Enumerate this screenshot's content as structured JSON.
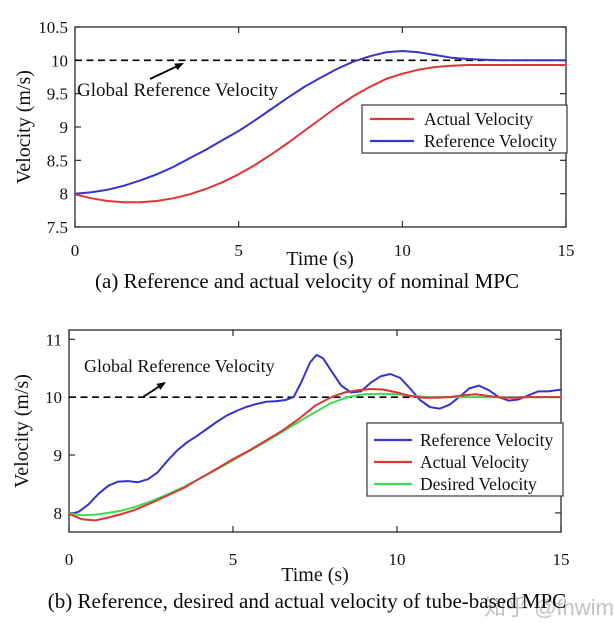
{
  "watermark": "知乎 @fhwim",
  "chart_data": [
    {
      "type": "line",
      "title": "(a) Reference and actual velocity of nominal MPC",
      "xlabel": "Time (s)",
      "ylabel": "Velocity (m/s)",
      "xlim": [
        0,
        15
      ],
      "ylim": [
        7.5,
        10.5
      ],
      "xticks": [
        0,
        5,
        10,
        15
      ],
      "yticks": [
        7.5,
        8,
        8.5,
        9,
        9.5,
        10,
        10.5
      ],
      "grid": false,
      "frame": "box",
      "annotation": {
        "text": "Global Reference Velocity",
        "arrow": true
      },
      "reference_line": {
        "y": 10,
        "style": "dashed",
        "color": "#000000"
      },
      "legend": {
        "position": "middle-right",
        "entries": [
          {
            "label": "Actual Velocity",
            "color": "#e03434"
          },
          {
            "label": "Reference Velocity",
            "color": "#3434cc"
          }
        ]
      },
      "series": [
        {
          "name": "Reference Velocity",
          "color": "#3434cc",
          "points": [
            [
              0,
              8.0
            ],
            [
              0.5,
              8.02
            ],
            [
              1,
              8.06
            ],
            [
              1.5,
              8.12
            ],
            [
              2,
              8.2
            ],
            [
              2.5,
              8.29
            ],
            [
              3,
              8.4
            ],
            [
              3.5,
              8.53
            ],
            [
              4,
              8.66
            ],
            [
              4.5,
              8.8
            ],
            [
              5,
              8.94
            ],
            [
              5.5,
              9.1
            ],
            [
              6,
              9.27
            ],
            [
              6.5,
              9.44
            ],
            [
              7,
              9.6
            ],
            [
              7.5,
              9.74
            ],
            [
              8,
              9.87
            ],
            [
              8.5,
              9.98
            ],
            [
              9,
              10.06
            ],
            [
              9.5,
              10.12
            ],
            [
              10,
              10.14
            ],
            [
              10.5,
              10.12
            ],
            [
              11,
              10.08
            ],
            [
              11.5,
              10.04
            ],
            [
              12,
              10.02
            ],
            [
              12.5,
              10.01
            ],
            [
              13,
              10.0
            ],
            [
              14,
              10.0
            ],
            [
              15,
              10.0
            ]
          ]
        },
        {
          "name": "Actual Velocity",
          "color": "#e03434",
          "points": [
            [
              0,
              7.99
            ],
            [
              0.5,
              7.93
            ],
            [
              1,
              7.89
            ],
            [
              1.5,
              7.87
            ],
            [
              2,
              7.87
            ],
            [
              2.5,
              7.89
            ],
            [
              3,
              7.93
            ],
            [
              3.5,
              7.99
            ],
            [
              4,
              8.07
            ],
            [
              4.5,
              8.17
            ],
            [
              5,
              8.29
            ],
            [
              5.5,
              8.43
            ],
            [
              6,
              8.59
            ],
            [
              6.5,
              8.76
            ],
            [
              7,
              8.94
            ],
            [
              7.5,
              9.12
            ],
            [
              8,
              9.3
            ],
            [
              8.5,
              9.46
            ],
            [
              9,
              9.6
            ],
            [
              9.5,
              9.72
            ],
            [
              10,
              9.8
            ],
            [
              10.5,
              9.86
            ],
            [
              11,
              9.9
            ],
            [
              11.5,
              9.92
            ],
            [
              12,
              9.93
            ],
            [
              12.5,
              9.93
            ],
            [
              13,
              9.93
            ],
            [
              14,
              9.93
            ],
            [
              15,
              9.93
            ]
          ]
        }
      ]
    },
    {
      "type": "line",
      "title": "(b) Reference, desired and actual velocity of tube-based MPC",
      "xlabel": "Time (s)",
      "ylabel": "Velocity (m/s)",
      "xlim": [
        0,
        15
      ],
      "ylim": [
        7.67,
        11.16
      ],
      "xticks": [
        0,
        5,
        10,
        15
      ],
      "yticks": [
        8,
        9,
        10,
        11
      ],
      "grid": false,
      "frame": "box",
      "annotation": {
        "text": "Global Reference Velocity",
        "arrow": true
      },
      "reference_line": {
        "y": 10,
        "style": "dashed",
        "color": "#000000"
      },
      "legend": {
        "position": "middle-right",
        "entries": [
          {
            "label": "Reference Velocity",
            "color": "#3434cc"
          },
          {
            "label": "Actual Velocity",
            "color": "#e03434"
          },
          {
            "label": "Desired Velocity",
            "color": "#3ddc52"
          }
        ]
      },
      "series": [
        {
          "name": "Reference Velocity",
          "color": "#3434cc",
          "points": [
            [
              0,
              7.97
            ],
            [
              0.3,
              8.02
            ],
            [
              0.6,
              8.15
            ],
            [
              0.9,
              8.33
            ],
            [
              1.2,
              8.47
            ],
            [
              1.5,
              8.54
            ],
            [
              1.8,
              8.55
            ],
            [
              2.1,
              8.53
            ],
            [
              2.4,
              8.58
            ],
            [
              2.7,
              8.7
            ],
            [
              3.0,
              8.9
            ],
            [
              3.3,
              9.08
            ],
            [
              3.6,
              9.22
            ],
            [
              3.9,
              9.33
            ],
            [
              4.2,
              9.45
            ],
            [
              4.5,
              9.57
            ],
            [
              4.8,
              9.68
            ],
            [
              5.1,
              9.76
            ],
            [
              5.4,
              9.83
            ],
            [
              5.7,
              9.88
            ],
            [
              6.0,
              9.92
            ],
            [
              6.3,
              9.93
            ],
            [
              6.6,
              9.95
            ],
            [
              6.85,
              10.0
            ],
            [
              7.1,
              10.28
            ],
            [
              7.35,
              10.6
            ],
            [
              7.55,
              10.73
            ],
            [
              7.75,
              10.67
            ],
            [
              8.0,
              10.45
            ],
            [
              8.3,
              10.2
            ],
            [
              8.6,
              10.08
            ],
            [
              8.9,
              10.1
            ],
            [
              9.2,
              10.25
            ],
            [
              9.5,
              10.36
            ],
            [
              9.8,
              10.4
            ],
            [
              10.1,
              10.33
            ],
            [
              10.4,
              10.15
            ],
            [
              10.7,
              9.95
            ],
            [
              11.0,
              9.83
            ],
            [
              11.3,
              9.8
            ],
            [
              11.6,
              9.87
            ],
            [
              11.9,
              10.0
            ],
            [
              12.2,
              10.15
            ],
            [
              12.5,
              10.2
            ],
            [
              12.8,
              10.12
            ],
            [
              13.1,
              10.0
            ],
            [
              13.4,
              9.94
            ],
            [
              13.7,
              9.96
            ],
            [
              14.0,
              10.03
            ],
            [
              14.3,
              10.1
            ],
            [
              14.6,
              10.1
            ],
            [
              15,
              10.13
            ]
          ]
        },
        {
          "name": "Desired Velocity",
          "color": "#3ddc52",
          "points": [
            [
              0,
              7.99
            ],
            [
              0.4,
              7.96
            ],
            [
              0.8,
              7.97
            ],
            [
              1.2,
              8.0
            ],
            [
              1.6,
              8.04
            ],
            [
              2.0,
              8.1
            ],
            [
              2.5,
              8.2
            ],
            [
              3.0,
              8.32
            ],
            [
              3.5,
              8.45
            ],
            [
              4.0,
              8.6
            ],
            [
              4.5,
              8.75
            ],
            [
              5.0,
              8.91
            ],
            [
              5.5,
              9.07
            ],
            [
              6.0,
              9.23
            ],
            [
              6.5,
              9.4
            ],
            [
              7.0,
              9.57
            ],
            [
              7.5,
              9.74
            ],
            [
              8.0,
              9.9
            ],
            [
              8.5,
              10.0
            ],
            [
              9.0,
              10.05
            ],
            [
              9.5,
              10.06
            ],
            [
              10.0,
              10.05
            ],
            [
              10.5,
              10.02
            ],
            [
              11.0,
              10.0
            ],
            [
              12.0,
              10.0
            ],
            [
              13.0,
              10.0
            ],
            [
              14.0,
              10.0
            ],
            [
              15,
              10.0
            ]
          ]
        },
        {
          "name": "Actual Velocity",
          "color": "#e03434",
          "points": [
            [
              0,
              7.98
            ],
            [
              0.4,
              7.89
            ],
            [
              0.8,
              7.87
            ],
            [
              1.2,
              7.92
            ],
            [
              1.6,
              7.98
            ],
            [
              2.0,
              8.05
            ],
            [
              2.5,
              8.17
            ],
            [
              3.0,
              8.3
            ],
            [
              3.5,
              8.43
            ],
            [
              4.0,
              8.6
            ],
            [
              4.5,
              8.76
            ],
            [
              5.0,
              8.93
            ],
            [
              5.5,
              9.08
            ],
            [
              6.0,
              9.25
            ],
            [
              6.5,
              9.42
            ],
            [
              7.0,
              9.62
            ],
            [
              7.5,
              9.85
            ],
            [
              8.0,
              10.0
            ],
            [
              8.4,
              10.08
            ],
            [
              8.8,
              10.12
            ],
            [
              9.2,
              10.14
            ],
            [
              9.6,
              10.13
            ],
            [
              10.0,
              10.08
            ],
            [
              10.4,
              10.02
            ],
            [
              10.8,
              9.99
            ],
            [
              11.2,
              9.99
            ],
            [
              11.6,
              10.0
            ],
            [
              12.0,
              10.03
            ],
            [
              12.4,
              10.05
            ],
            [
              12.8,
              10.02
            ],
            [
              13.2,
              9.99
            ],
            [
              13.6,
              9.99
            ],
            [
              14.0,
              10.0
            ],
            [
              14.5,
              10.0
            ],
            [
              15,
              10.0
            ]
          ]
        }
      ]
    }
  ]
}
